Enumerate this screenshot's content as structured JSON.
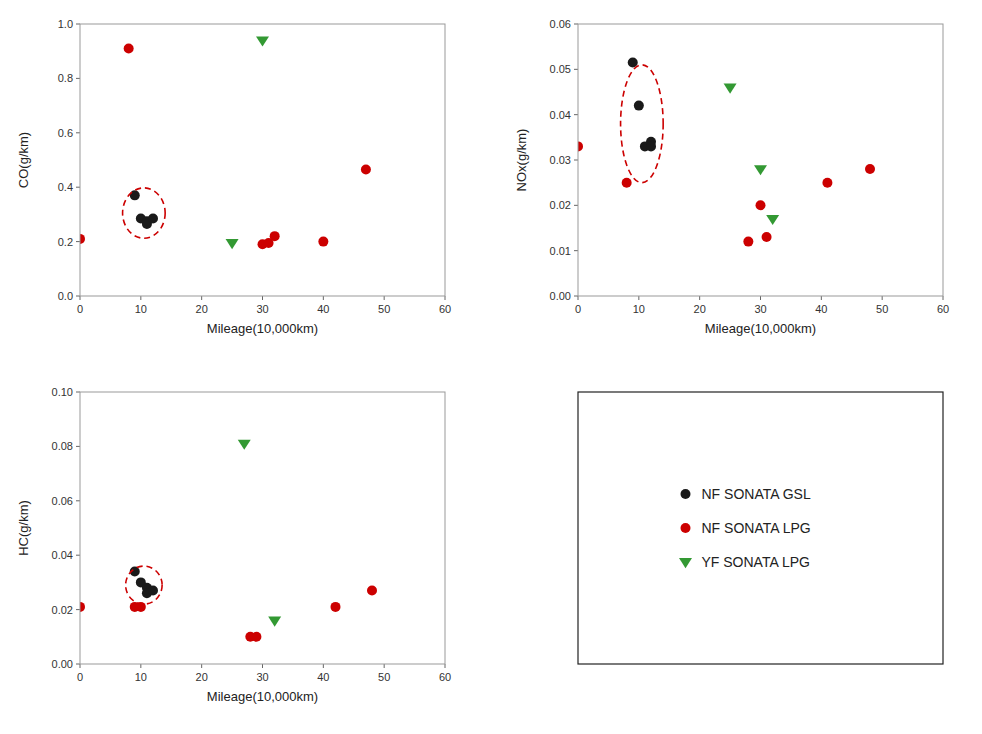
{
  "chart_data": [
    {
      "type": "scatter",
      "xlabel": "Mileage(10,000km)",
      "ylabel": "CO(g/km)",
      "xlim": [
        0,
        60
      ],
      "ylim": [
        0.0,
        1.0
      ],
      "xticks": [
        0,
        10,
        20,
        30,
        40,
        50,
        60
      ],
      "yticks": [
        {
          "value": 0.0,
          "label": "0.0"
        },
        0.2,
        0.4,
        0.6,
        0.8,
        {
          "value": 1.0,
          "label": "1.0"
        }
      ],
      "grid": false,
      "series": [
        {
          "name": "NF SONATA GSL",
          "color": "#1a1a1a",
          "marker": "circle",
          "x": [
            9,
            10,
            11,
            11,
            12
          ],
          "values": [
            0.37,
            0.285,
            0.265,
            0.275,
            0.285
          ]
        },
        {
          "name": "NF SONATA LPG",
          "color": "#cc0000",
          "marker": "circle",
          "x": [
            0,
            8,
            30,
            31,
            32,
            40,
            47
          ],
          "values": [
            0.21,
            0.91,
            0.19,
            0.195,
            0.22,
            0.2,
            0.465
          ]
        },
        {
          "name": "YF SONATA LPG",
          "color": "#339933",
          "marker": "triangle-down",
          "x": [
            25,
            30
          ],
          "values": [
            0.195,
            0.94
          ]
        }
      ],
      "ellipse": {
        "x": 10.5,
        "y": 0.305,
        "width": 7,
        "height": 0.185,
        "color": "#cc0000"
      }
    },
    {
      "type": "scatter",
      "xlabel": "Mileage(10,000km)",
      "ylabel": "NOx(g/km)",
      "xlim": [
        0,
        60
      ],
      "ylim": [
        0.0,
        0.06
      ],
      "xticks": [
        0,
        10,
        20,
        30,
        40,
        50,
        60
      ],
      "yticks": [
        {
          "value": 0.0,
          "label": "0.00"
        },
        0.01,
        0.02,
        0.03,
        0.04,
        0.05,
        0.06
      ],
      "grid": false,
      "series": [
        {
          "name": "NF SONATA GSL",
          "color": "#1a1a1a",
          "marker": "circle",
          "x": [
            9,
            10,
            11,
            12,
            12
          ],
          "values": [
            0.0515,
            0.042,
            0.033,
            0.034,
            0.033
          ]
        },
        {
          "name": "NF SONATA LPG",
          "color": "#cc0000",
          "marker": "circle",
          "x": [
            0,
            8,
            28,
            30,
            31,
            41,
            48
          ],
          "values": [
            0.033,
            0.025,
            0.012,
            0.02,
            0.013,
            0.025,
            0.028
          ]
        },
        {
          "name": "YF SONATA LPG",
          "color": "#339933",
          "marker": "triangle-down",
          "x": [
            25,
            30,
            32
          ],
          "values": [
            0.046,
            0.028,
            0.017
          ]
        }
      ],
      "ellipse": {
        "x": 10.5,
        "y": 0.038,
        "width": 7,
        "height": 0.026,
        "color": "#cc0000"
      }
    },
    {
      "type": "scatter",
      "xlabel": "Mileage(10,000km)",
      "ylabel": "HC(g/km)",
      "xlim": [
        0,
        60
      ],
      "ylim": [
        0.0,
        0.1
      ],
      "xticks": [
        0,
        10,
        20,
        30,
        40,
        50,
        60
      ],
      "yticks": [
        {
          "value": 0.0,
          "label": "0.00"
        },
        0.02,
        0.04,
        0.06,
        0.08,
        {
          "value": 0.1,
          "label": "0.10"
        }
      ],
      "grid": false,
      "series": [
        {
          "name": "NF SONATA GSL",
          "color": "#1a1a1a",
          "marker": "circle",
          "x": [
            9,
            10,
            11,
            11,
            12
          ],
          "values": [
            0.034,
            0.03,
            0.028,
            0.026,
            0.027
          ]
        },
        {
          "name": "NF SONATA LPG",
          "color": "#cc0000",
          "marker": "circle",
          "x": [
            0,
            9,
            10,
            28,
            29,
            42,
            48
          ],
          "values": [
            0.021,
            0.021,
            0.021,
            0.01,
            0.01,
            0.021,
            0.027
          ]
        },
        {
          "name": "YF SONATA LPG",
          "color": "#339933",
          "marker": "triangle-down",
          "x": [
            27,
            32
          ],
          "values": [
            0.081,
            0.016
          ]
        }
      ],
      "ellipse": {
        "x": 10.5,
        "y": 0.029,
        "width": 6,
        "height": 0.014,
        "color": "#cc0000"
      }
    }
  ]
}
